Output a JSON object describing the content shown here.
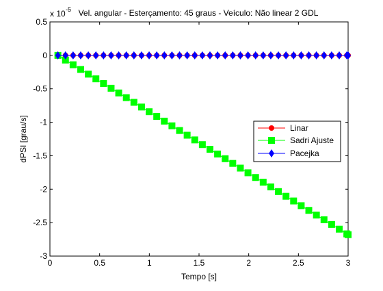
{
  "chart_data": {
    "type": "line",
    "title": "Vel. angular - Esterçamento: 45 graus - Veículo: Não linear 2 GDL",
    "xlabel": "Tempo [s]",
    "ylabel": "dPSI [grau/s]",
    "exponent_label": {
      "base": "x 10",
      "power": "-5"
    },
    "xlim": [
      0,
      3
    ],
    "ylim": [
      -3,
      0.5
    ],
    "y_scale_factor": 1e-05,
    "x_ticks": [
      0,
      0.5,
      1,
      1.5,
      2,
      2.5,
      3
    ],
    "x_tick_labels": [
      "0",
      "0.5",
      "1",
      "1.5",
      "2",
      "2.5",
      "3"
    ],
    "y_ticks": [
      0.5,
      0,
      -0.5,
      -1,
      -1.5,
      -2,
      -2.5,
      -3
    ],
    "y_tick_labels": [
      "0.5",
      "0",
      "-0.5",
      "-1",
      "-1.5",
      "-2",
      "-2.5",
      "-3"
    ],
    "grid": false,
    "legend_position": "right",
    "series": [
      {
        "name": "Linar",
        "color": "#ff0000",
        "marker": "circle",
        "x_start": 0.08,
        "x_end": 3.0,
        "x_step": 0.0765,
        "y_start": 0,
        "y_end": 0
      },
      {
        "name": "Sadri Ajuste",
        "color": "#00ff00",
        "marker": "square",
        "x_start": 0.08,
        "x_end": 3.0,
        "x_step": 0.0765,
        "y_start": 0,
        "y_end": -2.68
      },
      {
        "name": "Pacejka",
        "color": "#0000ff",
        "marker": "diamond",
        "x_start": 0.08,
        "x_end": 3.0,
        "x_step": 0.0765,
        "y_start": 0,
        "y_end": 0
      }
    ]
  }
}
